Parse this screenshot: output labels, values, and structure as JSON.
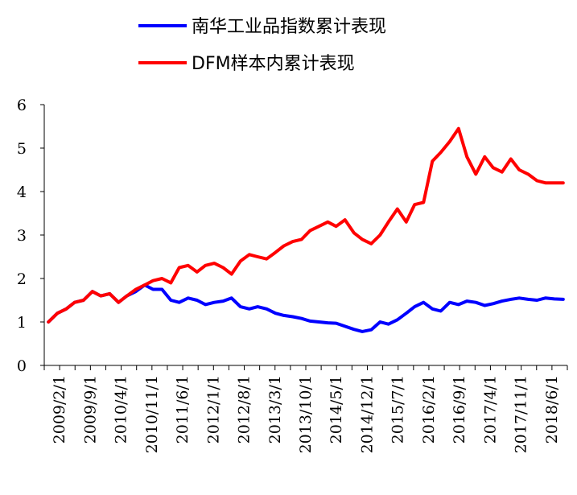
{
  "chart_data": {
    "type": "line",
    "title": "",
    "xlabel": "",
    "ylabel": "",
    "ylim": [
      0,
      6
    ],
    "yticks": [
      0,
      1,
      2,
      3,
      4,
      5,
      6
    ],
    "grid": false,
    "legend_position": "top-center",
    "x_tick_labels": [
      "2009/2/1",
      "2009/9/1",
      "2010/4/1",
      "2010/11/1",
      "2011/6/1",
      "2012/1/1",
      "2012/8/1",
      "2013/3/1",
      "2013/10/1",
      "2014/5/1",
      "2014/12/1",
      "2015/7/1",
      "2016/2/1",
      "2016/9/1",
      "2017/4/1",
      "2017/11/1",
      "2018/6/1"
    ],
    "series": [
      {
        "name": "南华工业品指数累计表现",
        "color": "#0000FF",
        "x": [
          2009.08,
          2009.25,
          2009.42,
          2009.58,
          2009.75,
          2009.92,
          2010.08,
          2010.25,
          2010.42,
          2010.58,
          2010.75,
          2010.92,
          2011.08,
          2011.25,
          2011.42,
          2011.58,
          2011.75,
          2011.92,
          2012.08,
          2012.25,
          2012.42,
          2012.58,
          2012.75,
          2012.92,
          2013.08,
          2013.25,
          2013.42,
          2013.58,
          2013.75,
          2013.92,
          2014.08,
          2014.25,
          2014.42,
          2014.58,
          2014.75,
          2014.92,
          2015.08,
          2015.25,
          2015.42,
          2015.58,
          2015.75,
          2015.92,
          2016.08,
          2016.25,
          2016.42,
          2016.58,
          2016.75,
          2016.92,
          2017.08,
          2017.25,
          2017.42,
          2017.58,
          2017.75,
          2017.92,
          2018.08,
          2018.25,
          2018.42,
          2018.58,
          2018.75,
          2018.92
        ],
        "y": [
          1.0,
          1.2,
          1.3,
          1.45,
          1.5,
          1.7,
          1.6,
          1.65,
          1.45,
          1.6,
          1.7,
          1.85,
          1.75,
          1.75,
          1.5,
          1.45,
          1.55,
          1.5,
          1.4,
          1.45,
          1.48,
          1.55,
          1.35,
          1.3,
          1.35,
          1.3,
          1.2,
          1.15,
          1.12,
          1.08,
          1.02,
          1.0,
          0.98,
          0.97,
          0.9,
          0.83,
          0.78,
          0.82,
          1.0,
          0.95,
          1.05,
          1.2,
          1.35,
          1.45,
          1.3,
          1.25,
          1.45,
          1.4,
          1.48,
          1.45,
          1.38,
          1.42,
          1.48,
          1.52,
          1.55,
          1.52,
          1.5,
          1.55,
          1.53,
          1.52
        ]
      },
      {
        "name": "DFM样本内累计表现",
        "color": "#FF0000",
        "x": [
          2009.08,
          2009.25,
          2009.42,
          2009.58,
          2009.75,
          2009.92,
          2010.08,
          2010.25,
          2010.42,
          2010.58,
          2010.75,
          2010.92,
          2011.08,
          2011.25,
          2011.42,
          2011.58,
          2011.75,
          2011.92,
          2012.08,
          2012.25,
          2012.42,
          2012.58,
          2012.75,
          2012.92,
          2013.08,
          2013.25,
          2013.42,
          2013.58,
          2013.75,
          2013.92,
          2014.08,
          2014.25,
          2014.42,
          2014.58,
          2014.75,
          2014.92,
          2015.08,
          2015.25,
          2015.42,
          2015.58,
          2015.75,
          2015.92,
          2016.08,
          2016.25,
          2016.42,
          2016.58,
          2016.75,
          2016.92,
          2017.08,
          2017.25,
          2017.42,
          2017.58,
          2017.75,
          2017.92,
          2018.08,
          2018.25,
          2018.42,
          2018.58,
          2018.75,
          2018.92
        ],
        "y": [
          1.0,
          1.2,
          1.3,
          1.45,
          1.5,
          1.7,
          1.6,
          1.65,
          1.45,
          1.6,
          1.75,
          1.85,
          1.95,
          2.0,
          1.9,
          2.25,
          2.3,
          2.15,
          2.3,
          2.35,
          2.25,
          2.1,
          2.4,
          2.55,
          2.5,
          2.45,
          2.6,
          2.75,
          2.85,
          2.9,
          3.1,
          3.2,
          3.3,
          3.2,
          3.35,
          3.05,
          2.9,
          2.8,
          3.0,
          3.3,
          3.6,
          3.3,
          3.7,
          3.75,
          4.7,
          4.9,
          5.15,
          5.45,
          4.8,
          4.4,
          4.8,
          4.55,
          4.45,
          4.75,
          4.5,
          4.4,
          4.25,
          4.2,
          4.2,
          4.2
        ]
      }
    ]
  }
}
